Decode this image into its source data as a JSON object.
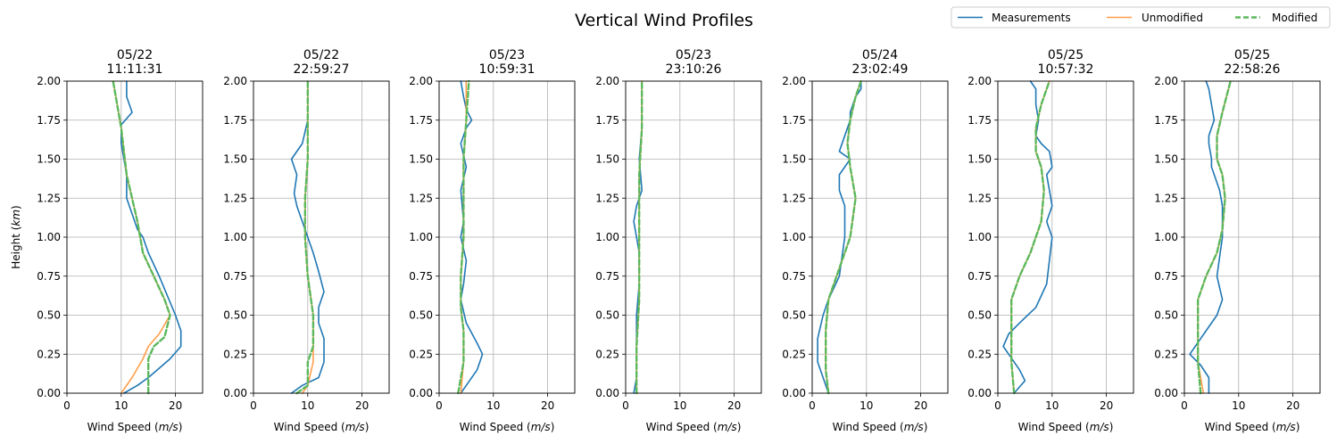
{
  "figure": {
    "title": "Vertical Wind Profiles"
  },
  "legend": {
    "location": "upper right",
    "entries": [
      {
        "label": "Measurements",
        "color": "#1f77b4",
        "style": "solid"
      },
      {
        "label": "Unmodified",
        "color": "#ff9e4a",
        "style": "solid"
      },
      {
        "label": "Modified",
        "color": "#5cb85c",
        "style": "dashed"
      }
    ]
  },
  "chart_data": [
    {
      "type": "line",
      "title_date": "05/22",
      "title_time": "11:11:31",
      "xlabel": "Wind Speed ($m/s$)",
      "ylabel": "Height ($km$)",
      "xlim": [
        0,
        25
      ],
      "ylim": [
        0,
        2
      ],
      "xticks": [
        "0",
        "10",
        "20"
      ],
      "yticks": [
        "0.00",
        "0.25",
        "0.50",
        "0.75",
        "1.00",
        "1.25",
        "1.50",
        "1.75",
        "2.00"
      ],
      "grid": true,
      "series": [
        {
          "name": "Measurements",
          "x": [
            10.5,
            13,
            15,
            17,
            19,
            21,
            21,
            20,
            17,
            15,
            14,
            13,
            11,
            11,
            10,
            10,
            12,
            11,
            11
          ],
          "y": [
            0,
            0.05,
            0.1,
            0.16,
            0.22,
            0.3,
            0.4,
            0.5,
            0.75,
            0.9,
            1.0,
            1.05,
            1.25,
            1.4,
            1.6,
            1.72,
            1.8,
            1.9,
            2.0
          ]
        },
        {
          "name": "Unmodified",
          "x": [
            10,
            12,
            14,
            15,
            17,
            19,
            18,
            16,
            14,
            13,
            11,
            10,
            8.5
          ],
          "y": [
            0,
            0.1,
            0.22,
            0.3,
            0.38,
            0.5,
            0.6,
            0.75,
            0.9,
            1.1,
            1.4,
            1.7,
            2.0
          ]
        },
        {
          "name": "Modified",
          "x": [
            15,
            15,
            15,
            16,
            18,
            19,
            18,
            16,
            14,
            13,
            11,
            10,
            8.5
          ],
          "y": [
            0,
            0.1,
            0.22,
            0.3,
            0.36,
            0.5,
            0.6,
            0.75,
            0.9,
            1.1,
            1.4,
            1.7,
            2.0
          ]
        }
      ]
    },
    {
      "type": "line",
      "title_date": "05/22",
      "title_time": "22:59:27",
      "xlabel": "Wind Speed ($m/s$)",
      "ylabel": "",
      "xlim": [
        0,
        25
      ],
      "ylim": [
        0,
        2
      ],
      "xticks": [
        "0",
        "10",
        "20"
      ],
      "yticks": [
        "0.00",
        "0.25",
        "0.50",
        "0.75",
        "1.00",
        "1.25",
        "1.50",
        "1.75",
        "2.00"
      ],
      "grid": true,
      "series": [
        {
          "name": "Measurements",
          "x": [
            7,
            9,
            12,
            13,
            13,
            12,
            12,
            13,
            12,
            11,
            10,
            9,
            8,
            7.5,
            8,
            7,
            9,
            10,
            10,
            10
          ],
          "y": [
            0,
            0.05,
            0.1,
            0.2,
            0.35,
            0.45,
            0.55,
            0.65,
            0.78,
            0.9,
            1.0,
            1.1,
            1.2,
            1.28,
            1.4,
            1.5,
            1.6,
            1.75,
            1.9,
            2.0
          ]
        },
        {
          "name": "Unmodified",
          "x": [
            9,
            10,
            11,
            11,
            11,
            10,
            9.5,
            9.5,
            10,
            10,
            10
          ],
          "y": [
            0,
            0.05,
            0.2,
            0.3,
            0.5,
            0.75,
            1.0,
            1.25,
            1.5,
            1.75,
            2.0
          ]
        },
        {
          "name": "Modified",
          "x": [
            8,
            10,
            10,
            11,
            11,
            10,
            9.5,
            9.5,
            10,
            10,
            10
          ],
          "y": [
            0,
            0.05,
            0.2,
            0.3,
            0.5,
            0.75,
            1.0,
            1.25,
            1.5,
            1.75,
            2.0
          ]
        }
      ]
    },
    {
      "type": "line",
      "title_date": "05/23",
      "title_time": "10:59:31",
      "xlabel": "Wind Speed ($m/s$)",
      "ylabel": "",
      "xlim": [
        0,
        25
      ],
      "ylim": [
        0,
        2
      ],
      "xticks": [
        "0",
        "10",
        "20"
      ],
      "yticks": [
        "0.00",
        "0.25",
        "0.50",
        "0.75",
        "1.00",
        "1.25",
        "1.50",
        "1.75",
        "2.00"
      ],
      "grid": true,
      "series": [
        {
          "name": "Measurements",
          "x": [
            4,
            5,
            7,
            8,
            7,
            5,
            4,
            4.5,
            5,
            4,
            4.5,
            4,
            5,
            4,
            5,
            6,
            5,
            4.5,
            4
          ],
          "y": [
            0,
            0.05,
            0.15,
            0.25,
            0.32,
            0.45,
            0.6,
            0.7,
            0.85,
            1.0,
            1.1,
            1.3,
            1.45,
            1.6,
            1.7,
            1.75,
            1.82,
            1.9,
            2.0
          ]
        },
        {
          "name": "Unmodified",
          "x": [
            4,
            4.5,
            4.5,
            4,
            4,
            4.5,
            4.5,
            5,
            5
          ],
          "y": [
            0,
            0.2,
            0.4,
            0.55,
            0.75,
            1.0,
            1.5,
            1.75,
            2.0
          ]
        },
        {
          "name": "Modified",
          "x": [
            3.5,
            4.5,
            4.5,
            4,
            4,
            4.5,
            4.5,
            5,
            5.5
          ],
          "y": [
            0,
            0.2,
            0.4,
            0.55,
            0.75,
            1.0,
            1.5,
            1.75,
            2.0
          ]
        }
      ]
    },
    {
      "type": "line",
      "title_date": "05/23",
      "title_time": "23:10:26",
      "xlabel": "Wind Speed ($m/s$)",
      "ylabel": "",
      "xlim": [
        0,
        25
      ],
      "ylim": [
        0,
        2
      ],
      "xticks": [
        "0",
        "10",
        "20"
      ],
      "yticks": [
        "0.00",
        "0.25",
        "0.50",
        "0.75",
        "1.00",
        "1.25",
        "1.50",
        "1.75",
        "2.00"
      ],
      "grid": true,
      "series": [
        {
          "name": "Measurements",
          "x": [
            1.5,
            2,
            2,
            2,
            2.5,
            2.5,
            2,
            1.5,
            2,
            3,
            2.5,
            3,
            3,
            3
          ],
          "y": [
            0,
            0.1,
            0.3,
            0.5,
            0.7,
            0.9,
            1.0,
            1.1,
            1.2,
            1.3,
            1.5,
            1.7,
            1.85,
            2.0
          ]
        },
        {
          "name": "Unmodified",
          "x": [
            2,
            2,
            2.5,
            2.5,
            2.5,
            3,
            3
          ],
          "y": [
            0,
            0.3,
            0.6,
            1.0,
            1.4,
            1.7,
            2.0
          ]
        },
        {
          "name": "Modified",
          "x": [
            2,
            2,
            2.5,
            2.5,
            2.5,
            3,
            3
          ],
          "y": [
            0,
            0.3,
            0.6,
            1.0,
            1.4,
            1.7,
            2.0
          ]
        }
      ]
    },
    {
      "type": "line",
      "title_date": "05/24",
      "title_time": "23:02:49",
      "xlabel": "Wind Speed ($m/s$)",
      "ylabel": "",
      "xlim": [
        0,
        25
      ],
      "ylim": [
        0,
        2
      ],
      "xticks": [
        "0",
        "10",
        "20"
      ],
      "yticks": [
        "0.00",
        "0.25",
        "0.50",
        "0.75",
        "1.00",
        "1.25",
        "1.50",
        "1.75",
        "2.00"
      ],
      "grid": true,
      "series": [
        {
          "name": "Measurements",
          "x": [
            3,
            2,
            1,
            1,
            2,
            3,
            5,
            6,
            6,
            5,
            5,
            7,
            5,
            6,
            7,
            7,
            8,
            9,
            9
          ],
          "y": [
            0,
            0.1,
            0.2,
            0.35,
            0.5,
            0.6,
            0.75,
            1.0,
            1.2,
            1.3,
            1.4,
            1.5,
            1.55,
            1.65,
            1.75,
            1.8,
            1.9,
            1.95,
            2.0
          ]
        },
        {
          "name": "Unmodified",
          "x": [
            3,
            2.5,
            2.5,
            3,
            5,
            7,
            8,
            7,
            6.5,
            7,
            8,
            9
          ],
          "y": [
            0,
            0.15,
            0.4,
            0.6,
            0.8,
            1.0,
            1.25,
            1.45,
            1.6,
            1.75,
            1.9,
            2.0
          ]
        },
        {
          "name": "Modified",
          "x": [
            3,
            2.5,
            2.5,
            3,
            5,
            7,
            8,
            7,
            6.5,
            7,
            8,
            9
          ],
          "y": [
            0,
            0.15,
            0.4,
            0.6,
            0.8,
            1.0,
            1.25,
            1.45,
            1.6,
            1.75,
            1.9,
            2.0
          ]
        }
      ]
    },
    {
      "type": "line",
      "title_date": "05/25",
      "title_time": "10:57:32",
      "xlabel": "Wind Speed ($m/s$)",
      "ylabel": "",
      "xlim": [
        0,
        25
      ],
      "ylim": [
        0,
        2
      ],
      "xticks": [
        "0",
        "10",
        "20"
      ],
      "yticks": [
        "0.00",
        "0.25",
        "0.50",
        "0.75",
        "1.00",
        "1.25",
        "1.50",
        "1.75",
        "2.00"
      ],
      "grid": true,
      "series": [
        {
          "name": "Measurements",
          "x": [
            3,
            5,
            4,
            2,
            1,
            2,
            4,
            7,
            9,
            10,
            9,
            10,
            9.5,
            9,
            10,
            9.5,
            8,
            7,
            7.5,
            7,
            7,
            6
          ],
          "y": [
            0,
            0.08,
            0.15,
            0.25,
            0.3,
            0.38,
            0.45,
            0.55,
            0.7,
            1.0,
            1.1,
            1.2,
            1.3,
            1.4,
            1.45,
            1.55,
            1.6,
            1.65,
            1.75,
            1.85,
            1.95,
            2.0
          ]
        },
        {
          "name": "Unmodified",
          "x": [
            3,
            2.5,
            2.5,
            2.5,
            4,
            6,
            8,
            8.5,
            8,
            7,
            7,
            8,
            9.5
          ],
          "y": [
            0,
            0.2,
            0.4,
            0.6,
            0.75,
            0.9,
            1.1,
            1.3,
            1.45,
            1.55,
            1.7,
            1.85,
            2.0
          ]
        },
        {
          "name": "Modified",
          "x": [
            3,
            2.5,
            2.5,
            2.5,
            4,
            6,
            8,
            8.5,
            8,
            7,
            7,
            8,
            9.5
          ],
          "y": [
            0,
            0.2,
            0.4,
            0.6,
            0.75,
            0.9,
            1.1,
            1.3,
            1.45,
            1.55,
            1.7,
            1.85,
            2.0
          ]
        }
      ]
    },
    {
      "type": "line",
      "title_date": "05/25",
      "title_time": "22:58:26",
      "xlabel": "Wind Speed ($m/s$)",
      "ylabel": "",
      "xlim": [
        0,
        25
      ],
      "ylim": [
        0,
        2
      ],
      "xticks": [
        "0",
        "10",
        "20"
      ],
      "yticks": [
        "0.00",
        "0.25",
        "0.50",
        "0.75",
        "1.00",
        "1.25",
        "1.50",
        "1.75",
        "2.00"
      ],
      "grid": true,
      "series": [
        {
          "name": "Measurements",
          "x": [
            4.5,
            4.5,
            3,
            1,
            2,
            4,
            6,
            7,
            6,
            7,
            7,
            6.5,
            5,
            5,
            4.5,
            4.5,
            5.5,
            5,
            4.5,
            4
          ],
          "y": [
            0,
            0.1,
            0.18,
            0.25,
            0.3,
            0.4,
            0.5,
            0.6,
            0.75,
            1.0,
            1.2,
            1.3,
            1.45,
            1.5,
            1.6,
            1.65,
            1.75,
            1.85,
            1.95,
            2.0
          ]
        },
        {
          "name": "Unmodified",
          "x": [
            3.5,
            2.5,
            2.5,
            2.5,
            4,
            6,
            7,
            7.5,
            7,
            6,
            6,
            7,
            8.5
          ],
          "y": [
            0,
            0.2,
            0.4,
            0.6,
            0.75,
            0.9,
            1.05,
            1.25,
            1.4,
            1.5,
            1.65,
            1.8,
            2.0
          ]
        },
        {
          "name": "Modified",
          "x": [
            3,
            2.5,
            2.5,
            2.5,
            4,
            6,
            7,
            7.5,
            7,
            6,
            6,
            7,
            8.5
          ],
          "y": [
            0,
            0.2,
            0.4,
            0.6,
            0.75,
            0.9,
            1.05,
            1.25,
            1.4,
            1.5,
            1.65,
            1.8,
            2.0
          ]
        }
      ]
    }
  ]
}
